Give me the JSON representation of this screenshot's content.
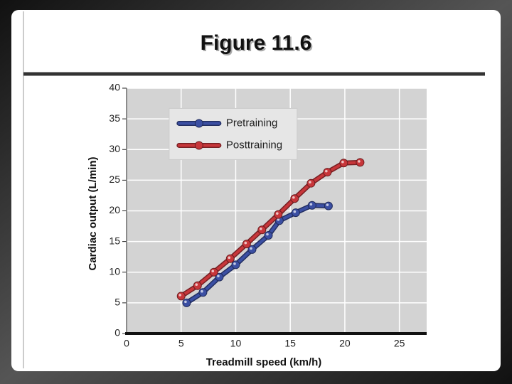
{
  "title": "Figure 11.6",
  "chart_data": {
    "type": "line",
    "x_label": "Treadmill speed (km/h)",
    "y_label": "Cardiac output (L/min)",
    "xlim": [
      0,
      27.5
    ],
    "xticks": [
      0,
      5,
      10,
      15,
      20,
      25
    ],
    "ylim": [
      0,
      40
    ],
    "yticks": [
      0,
      5,
      10,
      15,
      20,
      25,
      30,
      35,
      40
    ],
    "grid": true,
    "legend": "upper left",
    "series": [
      {
        "name": "Pretraining",
        "color": "#3b4fa3",
        "x": [
          5.5,
          7,
          8.5,
          10,
          11.5,
          13,
          14,
          15.5,
          17,
          18.5
        ],
        "values": [
          5.0,
          6.7,
          9.2,
          11.2,
          13.7,
          16.0,
          18.4,
          19.7,
          20.9,
          20.8
        ]
      },
      {
        "name": "Posttraining",
        "color": "#c7363a",
        "x": [
          5,
          6.5,
          8,
          9.5,
          11,
          12.4,
          13.9,
          15.4,
          16.9,
          18.4,
          19.9,
          21.4
        ],
        "values": [
          6.1,
          7.8,
          10.0,
          12.2,
          14.6,
          16.9,
          19.4,
          22.0,
          24.5,
          26.3,
          27.8,
          27.9
        ]
      }
    ]
  }
}
